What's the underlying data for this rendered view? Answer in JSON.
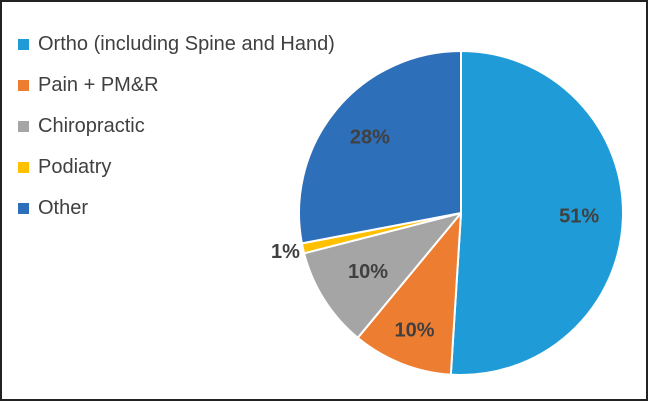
{
  "chart_data": {
    "type": "pie",
    "categories": [
      "Ortho (including Spine and Hand)",
      "Pain + PM&R",
      "Chiropractic",
      "Podiatry",
      "Other"
    ],
    "values": [
      51,
      10,
      10,
      1,
      28
    ],
    "data_labels": [
      "51%",
      "10%",
      "10%",
      "1%",
      "28%"
    ],
    "colors": [
      "#1f9bd7",
      "#ed7d31",
      "#a5a5a5",
      "#ffc000",
      "#2e6fba"
    ],
    "title": "",
    "legend_position": "top-left",
    "start_angle": "12 o'clock",
    "direction": "clockwise"
  }
}
